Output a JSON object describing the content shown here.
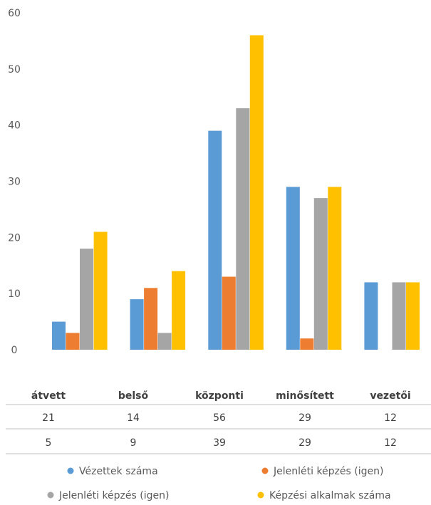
{
  "chart_data": {
    "type": "bar",
    "categories": [
      "átvett",
      "belső",
      "központi",
      "minősített",
      "vezetői"
    ],
    "series": [
      {
        "name": "Vézettek száma",
        "values": [
          5,
          9,
          39,
          29,
          12
        ],
        "color": "#5B9BD5"
      },
      {
        "name": "Jelenléti képzés (igen)",
        "values": [
          3,
          11,
          13,
          2,
          0
        ],
        "color": "#ED7D31"
      },
      {
        "name": "Jelenléti képzés (igen)",
        "values": [
          18,
          3,
          43,
          27,
          12
        ],
        "color": "#A5A5A5"
      },
      {
        "name": "Képzési alkalmak száma",
        "values": [
          21,
          14,
          56,
          29,
          12
        ],
        "color": "#FFC000"
      }
    ],
    "ylim": [
      0,
      60
    ],
    "yticks": [
      "0",
      "10",
      "20",
      "30",
      "40",
      "50",
      "60"
    ],
    "grid": false,
    "legend_position": "bottom",
    "table_rows": [
      [
        "21",
        "14",
        "56",
        "29",
        "12"
      ],
      [
        "5",
        "9",
        "39",
        "29",
        "12"
      ]
    ]
  }
}
